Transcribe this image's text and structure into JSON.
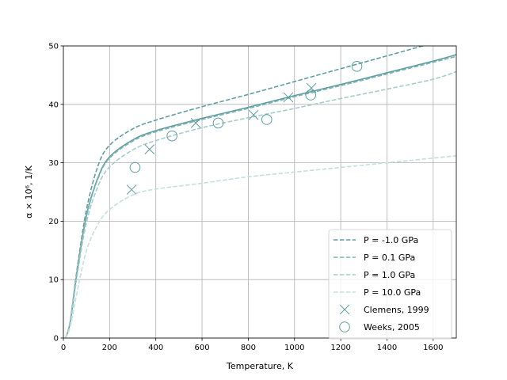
{
  "chart_data": {
    "type": "line",
    "xlabel": "Temperature, K",
    "ylabel": "α × 10⁶, 1/K",
    "xlim": [
      0,
      1700
    ],
    "ylim": [
      0,
      50
    ],
    "xticks": [
      0,
      200,
      400,
      600,
      800,
      1000,
      1200,
      1400,
      1600
    ],
    "yticks": [
      0,
      10,
      20,
      30,
      40,
      50
    ],
    "grid": true,
    "legend_position": "lower-right",
    "series": [
      {
        "name": "P = -1.0 GPa",
        "style": "dashed",
        "color": "#5f9ea0",
        "x": [
          10,
          30,
          60,
          100,
          150,
          200,
          300,
          400,
          600,
          800,
          1000,
          1200,
          1400,
          1600,
          1700
        ],
        "y": [
          0,
          3,
          12,
          22,
          29.5,
          33,
          35.8,
          37.3,
          39.6,
          41.7,
          43.9,
          46.1,
          48.3,
          50.5,
          51.6
        ]
      },
      {
        "name": "",
        "style": "solid",
        "color": "#5f9ea0",
        "x": [
          10,
          30,
          60,
          100,
          150,
          200,
          300,
          400,
          600,
          800,
          1000,
          1200,
          1400,
          1600,
          1700
        ],
        "y": [
          0,
          2.8,
          11.5,
          21,
          27.5,
          31,
          33.9,
          35.5,
          37.6,
          39.5,
          41.5,
          43.4,
          45.4,
          47.4,
          48.5
        ]
      },
      {
        "name": "P = 0.1 GPa",
        "style": "dashed",
        "color": "#7fb3b3",
        "x": [
          10,
          30,
          60,
          100,
          150,
          200,
          300,
          400,
          600,
          800,
          1000,
          1200,
          1400,
          1600,
          1700
        ],
        "y": [
          0,
          2.8,
          11.3,
          20.8,
          27.3,
          30.8,
          33.7,
          35.3,
          37.4,
          39.3,
          41.3,
          43.2,
          45.2,
          47.2,
          48.2
        ]
      },
      {
        "name": "P = 1.0 GPa",
        "style": "dashed",
        "color": "#a5cccb",
        "x": [
          10,
          30,
          60,
          100,
          150,
          200,
          300,
          400,
          600,
          800,
          1000,
          1200,
          1400,
          1600,
          1700
        ],
        "y": [
          0,
          2.6,
          10.8,
          19.8,
          26,
          29.3,
          32.2,
          33.8,
          36,
          37.7,
          39.3,
          41,
          42.6,
          44.3,
          45.6
        ]
      },
      {
        "name": "P = 10.0 GPa",
        "style": "dashed",
        "color": "#c5dfdd",
        "x": [
          10,
          30,
          60,
          100,
          150,
          200,
          300,
          400,
          600,
          800,
          1000,
          1200,
          1400,
          1600,
          1700
        ],
        "y": [
          0,
          2,
          8,
          15,
          19.5,
          22,
          24.5,
          25.5,
          26.5,
          27.6,
          28.4,
          29.2,
          30,
          30.8,
          31.2
        ]
      }
    ],
    "markers": [
      {
        "name": "Clemens, 1999",
        "shape": "x",
        "color": "#5f9ea0",
        "x": [
          295,
          373,
          573,
          823,
          973,
          1073
        ],
        "y": [
          25.4,
          32.3,
          36.8,
          38.2,
          41.2,
          42.8
        ]
      },
      {
        "name": "Weeks, 2005",
        "shape": "circle",
        "color": "#5f9ea0",
        "x": [
          310,
          470,
          670,
          880,
          1070,
          1270
        ],
        "y": [
          29.2,
          34.6,
          36.8,
          37.4,
          41.6,
          46.5
        ]
      }
    ]
  }
}
